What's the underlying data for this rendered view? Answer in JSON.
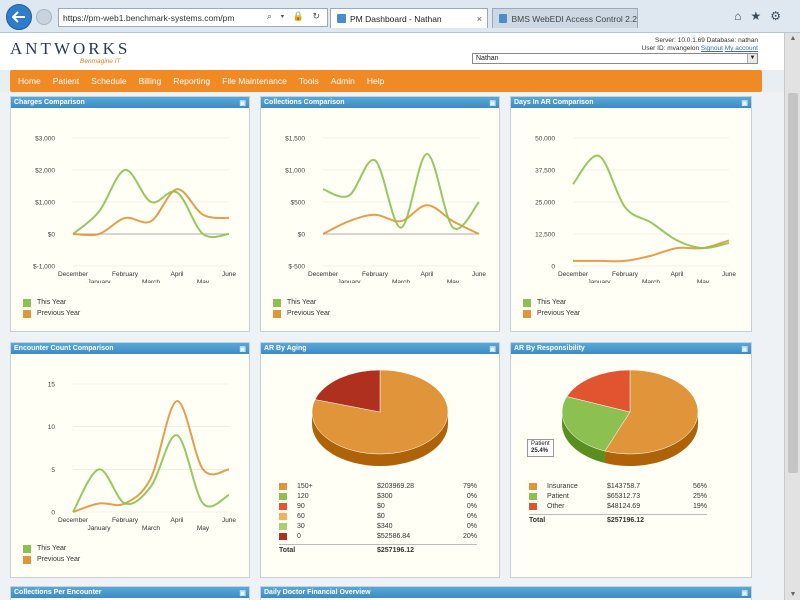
{
  "browser": {
    "address_prefix": "https://",
    "address_url": "pm-web1.benchmark-systems.com/pm",
    "tab_active": "PM Dashboard - Nathan",
    "tab_inactive": "BMS WebEDI Access Control 2.2"
  },
  "app": {
    "logo": "ANTWORKS",
    "logo_tagline": "Benmagine IT",
    "server_line": "Server: 10.0.1.69  Database: nathan",
    "user_line_prefix": "User ID: mvangelon",
    "signout": "Signout",
    "my_account": "My account",
    "user_selected": "Nathan"
  },
  "nav": [
    "Home",
    "Patient",
    "Schedule",
    "Billing",
    "Reporting",
    "File Maintenance",
    "Tools",
    "Admin",
    "Help"
  ],
  "panels": {
    "charges": {
      "title": "Charges Comparison"
    },
    "collections": {
      "title": "Collections Comparison"
    },
    "days_in_ar": {
      "title": "Days In AR Comparison"
    },
    "encounter": {
      "title": "Encounter Count Comparison"
    },
    "ar_aging": {
      "title": "AR By Aging"
    },
    "ar_resp": {
      "title": "AR By Responsibility"
    },
    "collections_per_encounter": {
      "title": "Collections Per Encounter"
    },
    "daily_doctor": {
      "title": "Daily Doctor Financial Overview"
    }
  },
  "legend": {
    "this_year": "This Year",
    "previous_year": "Previous Year"
  },
  "colors": {
    "this_year": "#8cc152",
    "previous_year": "#e0953a",
    "nav_orange": "#f08a24",
    "panel_head": "#4a9ace"
  },
  "chart_data": [
    {
      "type": "line",
      "title": "Charges Comparison",
      "x_top": [
        "December",
        "February",
        "April",
        "June"
      ],
      "x_bottom": [
        "January",
        "March",
        "May"
      ],
      "y_ticks": [
        "$3,000",
        "$2,000",
        "$1,000",
        "$0",
        "$-1,000"
      ],
      "ylim": [
        -1000,
        3000
      ],
      "series": [
        {
          "name": "This Year",
          "values": [
            0,
            700,
            2000,
            1000,
            1300,
            0,
            0
          ]
        },
        {
          "name": "Previous Year",
          "values": [
            0,
            0,
            500,
            400,
            1400,
            600,
            500
          ]
        }
      ]
    },
    {
      "type": "line",
      "title": "Collections Comparison",
      "x_top": [
        "December",
        "February",
        "April",
        "June"
      ],
      "x_bottom": [
        "January",
        "March",
        "May"
      ],
      "y_ticks": [
        "$1,500",
        "$1,000",
        "$500",
        "$0",
        "$-500"
      ],
      "ylim": [
        -500,
        1500
      ],
      "series": [
        {
          "name": "This Year",
          "values": [
            700,
            600,
            1150,
            100,
            1250,
            100,
            500
          ]
        },
        {
          "name": "Previous Year",
          "values": [
            0,
            200,
            300,
            200,
            450,
            200,
            0
          ]
        }
      ]
    },
    {
      "type": "line",
      "title": "Days In AR Comparison",
      "x_top": [
        "December",
        "February",
        "April",
        "June"
      ],
      "x_bottom": [
        "January",
        "March",
        "May"
      ],
      "y_ticks": [
        "50,000",
        "37,500",
        "25,000",
        "12,500",
        "0"
      ],
      "ylim": [
        0,
        50000
      ],
      "series": [
        {
          "name": "This Year",
          "values": [
            32000,
            43000,
            23000,
            17000,
            10000,
            7000,
            9000
          ]
        },
        {
          "name": "Previous Year",
          "values": [
            2000,
            2000,
            2000,
            4000,
            7000,
            7000,
            10000
          ]
        }
      ]
    },
    {
      "type": "line",
      "title": "Encounter Count Comparison",
      "x_top": [
        "December",
        "February",
        "April",
        "June"
      ],
      "x_bottom": [
        "January",
        "March",
        "May"
      ],
      "y_ticks": [
        "15",
        "10",
        "5",
        "0"
      ],
      "ylim": [
        0,
        15
      ],
      "series": [
        {
          "name": "This Year",
          "values": [
            0,
            5,
            1,
            3,
            9,
            1,
            2
          ]
        },
        {
          "name": "Previous Year",
          "values": [
            0,
            1,
            1,
            4,
            13,
            5,
            5
          ]
        }
      ]
    },
    {
      "type": "pie",
      "title": "AR By Aging",
      "slices": [
        {
          "label": "150+",
          "amount": "$203969.28",
          "pct": "79%",
          "value": 79,
          "color": "#e0953a"
        },
        {
          "label": "120",
          "amount": "$300",
          "pct": "0%",
          "value": 0,
          "color": "#8cc152"
        },
        {
          "label": "90",
          "amount": "$0",
          "pct": "0%",
          "value": 0,
          "color": "#e8552f"
        },
        {
          "label": "60",
          "amount": "$0",
          "pct": "0%",
          "value": 0,
          "color": "#f2b05a"
        },
        {
          "label": "30",
          "amount": "$340",
          "pct": "0%",
          "value": 0,
          "color": "#a8d070"
        },
        {
          "label": "0",
          "amount": "$52586.84",
          "pct": "20%",
          "value": 20,
          "color": "#b03020"
        }
      ],
      "total_label": "Total",
      "total_amount": "$257196.12"
    },
    {
      "type": "pie",
      "title": "AR By Responsibility",
      "slices": [
        {
          "label": "Insurance",
          "amount": "$143758.7",
          "pct": "56%",
          "value": 56,
          "color": "#e0953a"
        },
        {
          "label": "Patient",
          "amount": "$65312.73",
          "pct": "25%",
          "value": 25,
          "color": "#8cc152"
        },
        {
          "label": "Other",
          "amount": "$48124.69",
          "pct": "19%",
          "value": 19,
          "color": "#e0552f"
        }
      ],
      "tooltip": {
        "label": "Patient",
        "pct": "25.4%"
      },
      "total_label": "Total",
      "total_amount": "$257196.12"
    }
  ]
}
